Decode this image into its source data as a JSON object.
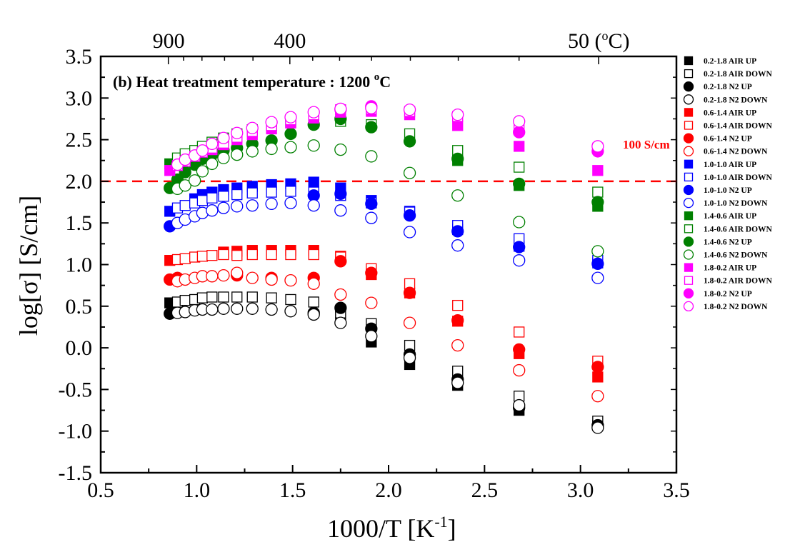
{
  "chart_data": {
    "type": "scatter",
    "title": "",
    "annotation": "(b) Heat treatment temperature : 1200 °C",
    "annotation_parts": {
      "main": "(b) Heat treatment temperature : 1200 ",
      "sup": "o",
      "tail": "C"
    },
    "xlabel": "1000/T  [K",
    "xlabel_sup": "-1",
    "xlabel_tail": "]",
    "ylabel": "log[σ] [S/cm]",
    "xlim": [
      0.5,
      3.5
    ],
    "ylim": [
      -1.5,
      3.5
    ],
    "xticks": [
      "0.5",
      "1.0",
      "1.5",
      "2.0",
      "2.5",
      "3.0",
      "3.5"
    ],
    "yticks": [
      "-1.5",
      "-1.0",
      "-0.5",
      "0.0",
      "0.5",
      "1.0",
      "1.5",
      "2.0",
      "2.5",
      "3.0",
      "3.5"
    ],
    "top_axis": {
      "labels": [
        {
          "text": "900",
          "x": 0.854
        },
        {
          "text": "400",
          "x": 1.486
        },
        {
          "text": "50 (",
          "sup": "o",
          "tail": "C)",
          "x": 3.095
        }
      ]
    },
    "reference_line": {
      "y": 2.0,
      "label": "100 S/cm",
      "color": "#ff0000",
      "style": "dashed"
    },
    "grid": false,
    "legend_position": "right-outside",
    "x": [
      0.86,
      0.9,
      0.94,
      0.99,
      1.03,
      1.08,
      1.14,
      1.21,
      1.29,
      1.39,
      1.49,
      1.61,
      1.75,
      1.91,
      2.11,
      2.36,
      2.68,
      3.09
    ],
    "series": [
      {
        "name": "0.2-1.8 AIR UP",
        "color": "#000000",
        "marker": "square",
        "filled": true,
        "values": [
          0.54,
          null,
          null,
          null,
          null,
          null,
          null,
          null,
          null,
          null,
          null,
          null,
          0.4,
          0.07,
          -0.2,
          -0.45,
          -0.75,
          -0.93
        ]
      },
      {
        "name": "0.2-1.8 AIR DOWN",
        "color": "#000000",
        "marker": "square",
        "filled": false,
        "values": [
          null,
          0.55,
          0.57,
          0.58,
          0.6,
          0.61,
          0.61,
          0.61,
          0.61,
          0.6,
          0.58,
          0.55,
          0.42,
          0.29,
          0.03,
          -0.28,
          -0.58,
          -0.88
        ]
      },
      {
        "name": "0.2-1.8 N2 UP",
        "color": "#000000",
        "marker": "circle",
        "filled": true,
        "values": [
          0.41,
          null,
          null,
          null,
          null,
          null,
          null,
          null,
          null,
          null,
          null,
          0.42,
          0.48,
          0.23,
          -0.08,
          -0.38,
          -0.72,
          -0.93
        ]
      },
      {
        "name": "0.2-1.8 N2 DOWN",
        "color": "#000000",
        "marker": "circle",
        "filled": false,
        "values": [
          null,
          0.42,
          0.43,
          0.45,
          0.46,
          0.46,
          0.47,
          0.47,
          0.47,
          0.46,
          0.44,
          0.4,
          0.3,
          0.14,
          -0.12,
          -0.42,
          -0.69,
          -0.96
        ]
      },
      {
        "name": "0.6-1.4 AIR UP",
        "color": "#ff0000",
        "marker": "square",
        "filled": true,
        "values": [
          1.05,
          null,
          null,
          null,
          null,
          null,
          1.15,
          1.16,
          1.17,
          1.17,
          1.17,
          1.17,
          1.1,
          0.88,
          0.66,
          0.32,
          -0.07,
          -0.35
        ]
      },
      {
        "name": "0.6-1.4 AIR DOWN",
        "color": "#ff0000",
        "marker": "square",
        "filled": false,
        "values": [
          null,
          1.06,
          1.07,
          1.09,
          1.1,
          1.11,
          1.12,
          1.11,
          1.12,
          1.12,
          1.12,
          1.12,
          1.09,
          0.95,
          0.77,
          0.51,
          0.19,
          -0.16
        ]
      },
      {
        "name": "0.6-1.4 N2 UP",
        "color": "#ff0000",
        "marker": "circle",
        "filled": true,
        "values": [
          0.82,
          0.84,
          null,
          null,
          null,
          null,
          null,
          0.87,
          null,
          0.84,
          null,
          0.84,
          1.04,
          0.9,
          0.66,
          0.33,
          -0.02,
          -0.23
        ]
      },
      {
        "name": "0.6-1.4 N2 DOWN",
        "color": "#ff0000",
        "marker": "circle",
        "filled": false,
        "values": [
          null,
          0.8,
          0.82,
          0.84,
          0.86,
          0.86,
          0.87,
          0.9,
          0.84,
          0.82,
          0.81,
          0.77,
          0.64,
          0.54,
          0.3,
          0.03,
          -0.27,
          -0.58
        ]
      },
      {
        "name": "1.0-1.0 AIR UP",
        "color": "#0000ff",
        "marker": "square",
        "filled": true,
        "values": [
          1.64,
          null,
          null,
          1.79,
          1.84,
          1.87,
          1.9,
          1.92,
          1.94,
          1.96,
          1.97,
          1.99,
          1.92,
          1.77,
          1.64,
          1.42,
          1.22,
          1.02
        ]
      },
      {
        "name": "1.0-1.0 AIR DOWN",
        "color": "#0000ff",
        "marker": "square",
        "filled": false,
        "values": [
          null,
          1.68,
          1.71,
          1.74,
          1.77,
          1.8,
          1.82,
          1.84,
          1.86,
          1.87,
          1.88,
          1.87,
          1.83,
          1.74,
          1.63,
          1.47,
          1.31,
          1.05
        ]
      },
      {
        "name": "1.0-1.0 N2 UP",
        "color": "#0000ff",
        "marker": "circle",
        "filled": true,
        "values": [
          1.46,
          null,
          null,
          null,
          null,
          null,
          null,
          null,
          null,
          null,
          null,
          1.83,
          1.85,
          1.73,
          1.59,
          1.4,
          1.21,
          1.01
        ]
      },
      {
        "name": "1.0-1.0 N2 DOWN",
        "color": "#0000ff",
        "marker": "circle",
        "filled": false,
        "values": [
          null,
          1.5,
          1.54,
          1.58,
          1.62,
          1.65,
          1.68,
          1.7,
          1.71,
          1.73,
          1.74,
          1.71,
          1.65,
          1.56,
          1.39,
          1.23,
          1.05,
          0.84
        ]
      },
      {
        "name": "1.4-0.6 AIR UP",
        "color": "#008000",
        "marker": "square",
        "filled": true,
        "values": [
          2.21,
          null,
          null,
          null,
          null,
          null,
          null,
          null,
          null,
          null,
          null,
          null,
          null,
          null,
          null,
          2.25,
          1.95,
          1.7
        ]
      },
      {
        "name": "1.4-0.6 AIR DOWN",
        "color": "#008000",
        "marker": "square",
        "filled": false,
        "values": [
          null,
          2.28,
          2.33,
          2.37,
          2.42,
          2.47,
          2.52,
          2.57,
          2.62,
          2.67,
          2.71,
          2.76,
          2.72,
          2.68,
          2.57,
          2.37,
          2.17,
          1.87
        ]
      },
      {
        "name": "1.4-0.6 N2 UP",
        "color": "#008000",
        "marker": "circle",
        "filled": true,
        "values": [
          1.92,
          2.02,
          2.11,
          2.2,
          2.27,
          2.32,
          2.37,
          2.4,
          2.45,
          2.49,
          2.57,
          2.68,
          2.75,
          2.65,
          2.48,
          2.27,
          1.97,
          1.75
        ]
      },
      {
        "name": "1.4-0.6 N2 DOWN",
        "color": "#008000",
        "marker": "circle",
        "filled": false,
        "values": [
          null,
          1.91,
          1.95,
          2.01,
          2.12,
          2.21,
          2.28,
          2.32,
          2.36,
          2.39,
          2.41,
          2.43,
          2.38,
          2.3,
          2.1,
          1.83,
          1.51,
          1.16
        ]
      },
      {
        "name": "1.8-0.2 AIR UP",
        "color": "#ff00ff",
        "marker": "square",
        "filled": true,
        "values": [
          2.13,
          null,
          null,
          null,
          null,
          2.38,
          2.44,
          2.5,
          2.56,
          2.63,
          2.7,
          2.76,
          2.83,
          2.84,
          2.8,
          2.67,
          2.42,
          2.13
        ]
      },
      {
        "name": "1.8-0.2 AIR DOWN",
        "color": "#ff00ff",
        "marker": "square",
        "filled": false,
        "values": [
          null,
          2.19,
          2.24,
          2.3,
          2.35,
          2.4,
          2.46,
          2.53,
          2.6,
          2.67,
          2.74,
          2.8,
          2.86,
          2.87,
          2.84,
          2.78,
          2.69,
          2.4
        ]
      },
      {
        "name": "1.8-0.2 N2 UP",
        "color": "#ff00ff",
        "marker": "circle",
        "filled": true,
        "values": [
          null,
          null,
          null,
          null,
          null,
          null,
          null,
          null,
          null,
          null,
          null,
          null,
          2.86,
          2.9,
          null,
          null,
          2.59,
          2.36
        ]
      },
      {
        "name": "1.8-0.2 N2 DOWN",
        "color": "#ff00ff",
        "marker": "circle",
        "filled": false,
        "values": [
          null,
          2.2,
          2.26,
          2.31,
          2.37,
          2.45,
          2.52,
          2.58,
          2.64,
          2.71,
          2.77,
          2.83,
          2.87,
          2.88,
          2.86,
          2.8,
          2.72,
          2.42
        ]
      }
    ]
  }
}
